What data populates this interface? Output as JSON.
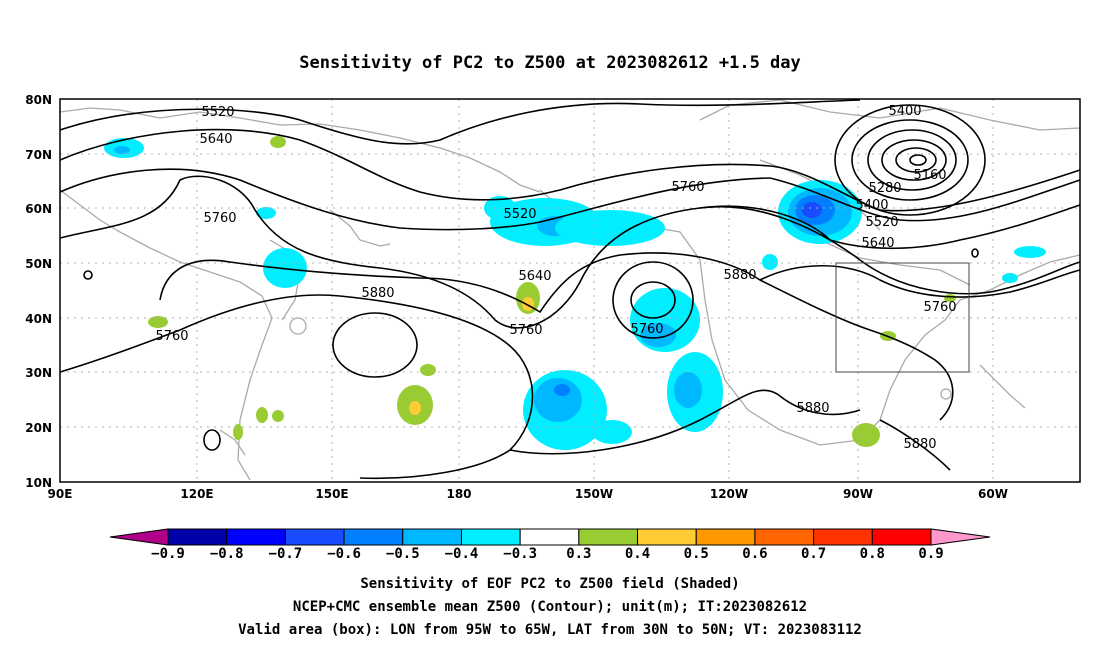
{
  "title": "Sensitivity of PC2 to Z500 at 2023082612 +1.5 day",
  "lat_labels": [
    "80N",
    "70N",
    "60N",
    "50N",
    "40N",
    "30N",
    "20N",
    "10N"
  ],
  "lon_labels": [
    "90E",
    "120E",
    "150E",
    "180",
    "150W",
    "120W",
    "90W",
    "60W"
  ],
  "contour_labels": [
    "5520",
    "5640",
    "5760",
    "5760",
    "5520",
    "5640",
    "5760",
    "5880",
    "5760",
    "5760",
    "5880",
    "5400",
    "5160",
    "5280",
    "5400",
    "5520",
    "5640",
    "5760",
    "5880",
    "5880"
  ],
  "colorbar": {
    "labels": [
      "−0.9",
      "−0.8",
      "−0.7",
      "−0.6",
      "−0.5",
      "−0.4",
      "−0.3",
      "0.3",
      "0.4",
      "0.5",
      "0.6",
      "0.7",
      "0.8",
      "0.9"
    ],
    "colors": [
      "#0000a8",
      "#0000ff",
      "#1a4cff",
      "#0080ff",
      "#00b8ff",
      "#00eeff",
      "#ffffff",
      "#99cc33",
      "#ffcc33",
      "#ff9900",
      "#ff6600",
      "#ff3300",
      "#ff0000"
    ],
    "end_left": "#b0008a",
    "end_right": "#ff99cc"
  },
  "caption": {
    "line1": "Sensitivity of EOF PC2 to Z500 field (Shaded)",
    "line2": "NCEP+CMC ensemble mean Z500 (Contour); unit(m); IT:2023082612",
    "line3": "Valid area (box): LON from 95W to 65W, LAT from 30N to 50N; VT: 2023083112"
  }
}
